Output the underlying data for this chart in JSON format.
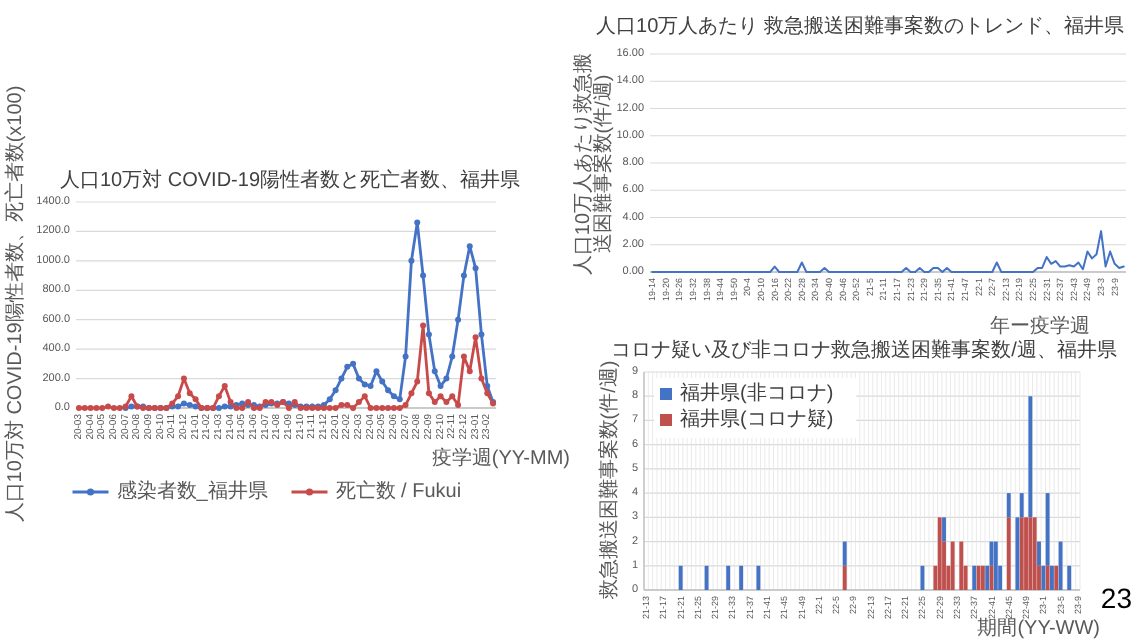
{
  "chart_data": [
    {
      "type": "line",
      "title": "人口10万対 COVID-19陽性者数と死亡者数、福井県",
      "ylabel": "人口10万対 COVID-19陽性者数、死亡者数(x100)",
      "xlabel": "疫学週(YY-MM)",
      "marker": "circle",
      "grid": "y",
      "legend": "bottom",
      "ylim": [
        0,
        1400
      ],
      "yticks": [
        {
          "value": 0,
          "label": "0.0"
        },
        {
          "value": 200,
          "label": "200.0"
        },
        {
          "value": 400,
          "label": "400.0"
        },
        {
          "value": 600,
          "label": "600.0"
        },
        {
          "value": 800,
          "label": "800.0"
        },
        {
          "value": 1000,
          "label": "1000.0"
        },
        {
          "value": 1200,
          "label": "1200.0"
        },
        {
          "value": 1400,
          "label": "1400.0"
        }
      ],
      "categories": [
        "20-03",
        null,
        "20-04",
        null,
        "20-05",
        null,
        "20-06",
        null,
        "20-07",
        null,
        "20-08",
        null,
        "20-09",
        null,
        "20-10",
        null,
        "20-11",
        null,
        "20-12",
        null,
        "21-01",
        null,
        "21-02",
        null,
        "21-03",
        null,
        "21-04",
        null,
        "21-05",
        null,
        "21-06",
        null,
        "21-07",
        null,
        "21-08",
        null,
        "21-09",
        null,
        "21-10",
        null,
        "21-11",
        null,
        "21-12",
        null,
        "22-01",
        null,
        "22-02",
        null,
        "22-03",
        null,
        "22-04",
        null,
        "22-05",
        null,
        "22-06",
        null,
        "22-07",
        null,
        "22-08",
        null,
        "22-09",
        null,
        "22-10",
        null,
        "22-11",
        null,
        "22-12",
        null,
        "23-01",
        null,
        "23-02",
        null
      ],
      "series": [
        {
          "name": "感染者数_福井県",
          "color": "#4472c4",
          "values": [
            null,
            null,
            null,
            null,
            null,
            null,
            null,
            null,
            0,
            10,
            10,
            10,
            0,
            0,
            0,
            0,
            10,
            10,
            30,
            20,
            10,
            0,
            0,
            0,
            0,
            10,
            10,
            20,
            30,
            20,
            20,
            10,
            20,
            30,
            30,
            40,
            30,
            20,
            10,
            10,
            10,
            10,
            20,
            60,
            120,
            200,
            280,
            300,
            200,
            160,
            150,
            250,
            180,
            120,
            80,
            60,
            350,
            1000,
            1260,
            900,
            500,
            250,
            150,
            200,
            350,
            600,
            900,
            1100,
            950,
            500,
            150,
            40
          ]
        },
        {
          "name": "死亡数 / Fukui",
          "color": "#c84b4b",
          "values": [
            0,
            0,
            0,
            0,
            0,
            10,
            0,
            0,
            10,
            80,
            10,
            0,
            0,
            0,
            0,
            0,
            30,
            80,
            200,
            100,
            60,
            0,
            0,
            0,
            80,
            150,
            40,
            0,
            0,
            40,
            0,
            0,
            40,
            40,
            20,
            40,
            0,
            40,
            0,
            0,
            0,
            0,
            0,
            0,
            0,
            20,
            20,
            0,
            40,
            80,
            0,
            0,
            0,
            0,
            0,
            0,
            20,
            100,
            180,
            560,
            100,
            40,
            80,
            40,
            80,
            20,
            350,
            250,
            480,
            200,
            100,
            30
          ]
        }
      ]
    },
    {
      "type": "line",
      "title": "人口10万人あたり 救急搬送困難事案数のトレンド、福井県",
      "ylabel": "人口10万人あたり救急搬送困難事案数(件/週)",
      "xlabel": "年ー疫学週",
      "grid": "y",
      "ylim": [
        0,
        16
      ],
      "yticks": [
        {
          "value": 0,
          "label": "0.00"
        },
        {
          "value": 2,
          "label": "2.00"
        },
        {
          "value": 4,
          "label": "4.00"
        },
        {
          "value": 6,
          "label": "6.00"
        },
        {
          "value": 8,
          "label": "8.00"
        },
        {
          "value": 10,
          "label": "10.00"
        },
        {
          "value": 12,
          "label": "12.00"
        },
        {
          "value": 14,
          "label": "14.00"
        },
        {
          "value": 16,
          "label": "16.00"
        }
      ],
      "categories": [
        "19-14",
        null,
        null,
        "19-20",
        null,
        null,
        "19-26",
        null,
        null,
        "19-32",
        null,
        null,
        "19-38",
        null,
        null,
        "19-44",
        null,
        null,
        "19-50",
        null,
        null,
        "20-4",
        null,
        null,
        "20-10",
        null,
        null,
        "20-16",
        null,
        null,
        "20-22",
        null,
        null,
        "20-28",
        null,
        null,
        "20-34",
        null,
        null,
        "20-40",
        null,
        null,
        "20-46",
        null,
        null,
        "20-52",
        null,
        null,
        "21-5",
        null,
        null,
        "21-11",
        null,
        null,
        "21-17",
        null,
        null,
        "21-23",
        null,
        null,
        "21-29",
        null,
        null,
        "21-35",
        null,
        null,
        "21-41",
        null,
        null,
        "21-47",
        null,
        null,
        "22-1",
        null,
        null,
        "22-7",
        null,
        null,
        "22-13",
        null,
        null,
        "22-19",
        null,
        null,
        "22-25",
        null,
        null,
        "22-31",
        null,
        null,
        "22-37",
        null,
        null,
        "22-43",
        null,
        null,
        "22-49",
        null,
        null,
        "23-3",
        null,
        null,
        "23-9",
        null,
        null
      ],
      "series": [
        {
          "color": "#4472c4",
          "values": [
            0,
            0,
            0,
            0,
            0,
            0,
            0,
            0,
            0,
            0,
            0,
            0,
            0,
            0,
            0,
            0,
            0,
            0,
            0,
            0,
            0,
            0,
            0,
            0,
            0,
            0,
            0,
            0.4,
            0,
            0,
            0,
            0,
            0,
            0.7,
            0,
            0,
            0,
            0,
            0.3,
            0,
            0,
            0,
            0,
            0,
            0,
            0,
            0,
            0,
            0,
            0,
            0,
            0,
            0,
            0,
            0,
            0,
            0.3,
            0,
            0,
            0.3,
            0,
            0,
            0.3,
            0.3,
            0,
            0.3,
            0,
            0,
            0,
            0,
            0,
            0,
            0,
            0,
            0,
            0,
            0.7,
            0,
            0,
            0,
            0,
            0,
            0,
            0,
            0,
            0.3,
            0.3,
            1.1,
            0.6,
            0.8,
            0.4,
            0.4,
            0.5,
            0.4,
            0.7,
            0.2,
            1.5,
            1.0,
            1.3,
            3.0,
            0.4,
            1.5,
            0.6,
            0.3,
            0.4
          ]
        }
      ]
    },
    {
      "type": "bar",
      "stacked": true,
      "title": "コロナ疑い及び非コロナ救急搬送困難事案数/週、福井県",
      "ylabel": "救急搬送困難事案数(件/週)",
      "xlabel": "期間(YY-WW)",
      "grid": true,
      "legend": "top left",
      "annotations": [
        "23"
      ],
      "ylim": [
        0,
        9
      ],
      "yticks": [
        0,
        1,
        2,
        3,
        4,
        5,
        6,
        7,
        8,
        9
      ],
      "categories": [
        "21-13",
        null,
        null,
        null,
        "21-17",
        null,
        null,
        null,
        "21-21",
        null,
        null,
        null,
        "21-25",
        null,
        null,
        null,
        "21-29",
        null,
        null,
        null,
        "21-33",
        null,
        null,
        null,
        "21-37",
        null,
        null,
        null,
        "21-41",
        null,
        null,
        null,
        "21-45",
        null,
        null,
        null,
        "21-49",
        null,
        null,
        null,
        "22-1",
        null,
        null,
        null,
        "22-5",
        null,
        null,
        null,
        "22-9",
        null,
        null,
        null,
        "22-13",
        null,
        null,
        null,
        "22-17",
        null,
        null,
        null,
        "22-21",
        null,
        null,
        null,
        "22-25",
        null,
        null,
        null,
        "22-29",
        null,
        null,
        null,
        "22-33",
        null,
        null,
        null,
        "22-37",
        null,
        null,
        null,
        "22-41",
        null,
        null,
        null,
        "22-45",
        null,
        null,
        null,
        "22-49",
        null,
        null,
        null,
        "23-1",
        null,
        null,
        null,
        "23-5",
        null,
        null,
        null,
        "23-9"
      ],
      "series": [
        {
          "name": "福井県(コロナ疑)",
          "color": "#c0504d",
          "values": [
            0,
            0,
            0,
            0,
            0,
            0,
            0,
            0,
            0,
            0,
            0,
            0,
            0,
            0,
            0,
            0,
            0,
            0,
            0,
            0,
            0,
            0,
            0,
            0,
            0,
            0,
            0,
            0,
            0,
            0,
            0,
            0,
            0,
            0,
            0,
            0,
            0,
            0,
            0,
            0,
            0,
            0,
            0,
            0,
            0,
            0,
            1,
            0,
            0,
            0,
            0,
            0,
            0,
            0,
            0,
            0,
            0,
            0,
            0,
            0,
            0,
            0,
            0,
            0,
            0,
            0,
            0,
            1,
            3,
            2,
            1,
            2,
            0,
            2,
            1,
            0,
            0,
            1,
            1,
            0,
            1,
            0,
            0,
            0,
            3,
            0,
            0,
            3,
            3,
            3,
            3,
            1,
            0,
            1,
            0,
            1,
            0,
            0,
            0,
            0,
            0
          ]
        },
        {
          "name": "福井県(非コロナ)",
          "color": "#4472c4",
          "values": [
            0,
            0,
            0,
            0,
            0,
            0,
            0,
            0,
            1,
            0,
            0,
            0,
            0,
            0,
            1,
            0,
            0,
            0,
            0,
            1,
            0,
            0,
            1,
            0,
            0,
            0,
            1,
            0,
            0,
            0,
            0,
            0,
            0,
            0,
            0,
            0,
            0,
            0,
            0,
            0,
            0,
            0,
            0,
            0,
            0,
            0,
            1,
            0,
            0,
            0,
            0,
            0,
            0,
            0,
            0,
            0,
            0,
            0,
            0,
            0,
            0,
            0,
            0,
            0,
            1,
            0,
            0,
            0,
            0,
            1,
            0,
            0,
            0,
            0,
            0,
            0,
            1,
            0,
            0,
            1,
            1,
            2,
            1,
            0,
            1,
            0,
            3,
            1,
            0,
            5,
            0,
            1,
            1,
            3,
            1,
            0,
            2,
            0,
            1,
            0,
            0
          ]
        }
      ]
    }
  ]
}
